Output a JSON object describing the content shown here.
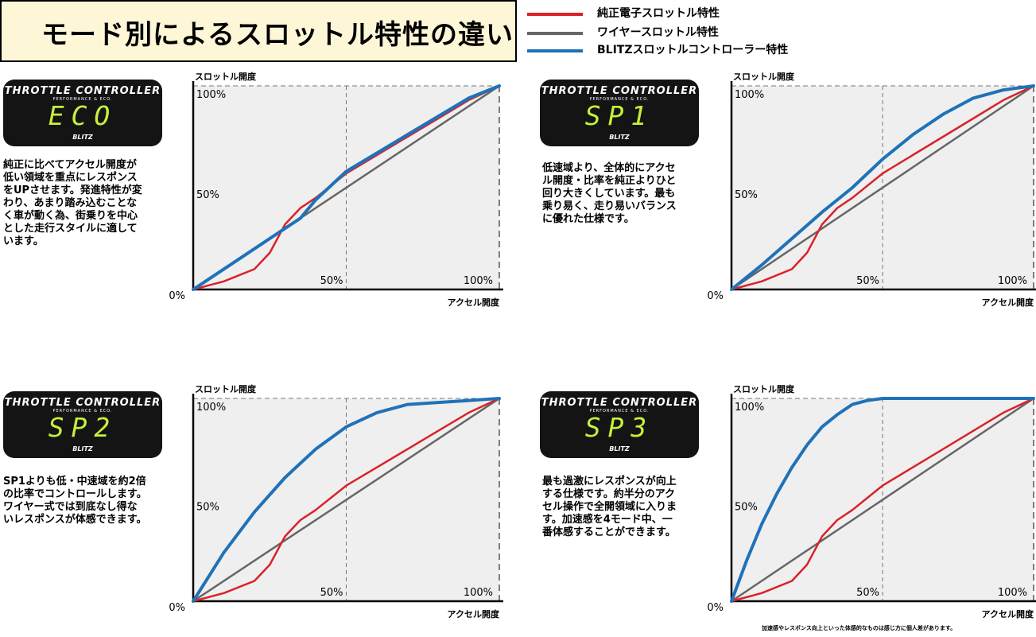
{
  "header": {
    "title": "モード別によるスロットル特性の違い"
  },
  "legend": [
    {
      "label": "純正電子スロットル特性",
      "color": "#d9222a"
    },
    {
      "label": "ワイヤースロットル特性",
      "color": "#666666"
    },
    {
      "label": "BLITZスロットルコントローラー特性",
      "color": "#1f72b8"
    }
  ],
  "device": {
    "brand": "THROTTLE CONTROLLER",
    "sub": "PERFORMANCE & ECO.",
    "logo": "BLITZ"
  },
  "panels": [
    {
      "mode": "ECO",
      "description": "純正に比べてアクセル開度が\n低い領域を重点にレスポンス\nをUPさせます。発進特性が変\nわり、あまり踏み込むことな\nく車が動く為、街乗りを中心\nとした走行スタイルに適して\nいます。"
    },
    {
      "mode": "SP1",
      "description": "低速域より、全体的にアクセ\nル開度・比率を純正よりひと\n回り大きくしています。最も\n乗り易く、走り易いバランス\nに優れた仕様です。"
    },
    {
      "mode": "SP2",
      "description": "SP1よりも低・中速域を約2倍\nの比率でコントロールします。\nワイヤー式では到底なし得な\nいレスポンスが体感できます。"
    },
    {
      "mode": "SP3",
      "description": "最も過激にレスポンスが向上\nする仕様です。約半分のアク\nセル操作で全開領域に入りま\nす。加速感を4モード中、一\n番体感することができます。"
    }
  ],
  "footnote": "加速感やレスポンス向上といった体感的なものは感じ方に個人差があります。",
  "chart_data": [
    {
      "type": "line",
      "mode": "ECO",
      "ylabel": "スロットル開度",
      "xlabel": "アクセル開度",
      "xlim": [
        0,
        100
      ],
      "ylim": [
        0,
        100
      ],
      "xticks": [
        "0%",
        "50%",
        "100%"
      ],
      "yticks": [
        "50%",
        "100%"
      ],
      "series": [
        {
          "name": "純正電子スロットル特性",
          "color": "#d9222a",
          "x": [
            0,
            10,
            20,
            25,
            30,
            35,
            40,
            50,
            60,
            70,
            80,
            90,
            100
          ],
          "y": [
            0,
            4,
            10,
            18,
            32,
            40,
            45,
            57,
            66,
            75,
            84,
            93,
            100
          ]
        },
        {
          "name": "ワイヤースロットル特性",
          "color": "#666666",
          "x": [
            0,
            100
          ],
          "y": [
            0,
            100
          ]
        },
        {
          "name": "BLITZスロットルコントローラー特性",
          "color": "#1f72b8",
          "x": [
            0,
            10,
            20,
            30,
            35,
            40,
            50,
            60,
            70,
            80,
            90,
            100
          ],
          "y": [
            0,
            10,
            20,
            30,
            35,
            44,
            58,
            67,
            76,
            85,
            94,
            100
          ]
        }
      ]
    },
    {
      "type": "line",
      "mode": "SP1",
      "ylabel": "スロットル開度",
      "xlabel": "アクセル開度",
      "xlim": [
        0,
        100
      ],
      "ylim": [
        0,
        100
      ],
      "xticks": [
        "0%",
        "50%",
        "100%"
      ],
      "yticks": [
        "50%",
        "100%"
      ],
      "series": [
        {
          "name": "純正電子スロットル特性",
          "color": "#d9222a",
          "x": [
            0,
            10,
            20,
            25,
            30,
            35,
            40,
            50,
            60,
            70,
            80,
            90,
            100
          ],
          "y": [
            0,
            4,
            10,
            18,
            32,
            40,
            45,
            57,
            66,
            75,
            84,
            93,
            100
          ]
        },
        {
          "name": "ワイヤースロットル特性",
          "color": "#666666",
          "x": [
            0,
            100
          ],
          "y": [
            0,
            100
          ]
        },
        {
          "name": "BLITZスロットルコントローラー特性",
          "color": "#1f72b8",
          "x": [
            0,
            10,
            20,
            30,
            40,
            50,
            60,
            70,
            80,
            90,
            100
          ],
          "y": [
            0,
            12,
            25,
            38,
            50,
            64,
            76,
            86,
            94,
            98,
            100
          ]
        }
      ]
    },
    {
      "type": "line",
      "mode": "SP2",
      "ylabel": "スロットル開度",
      "xlabel": "アクセル開度",
      "xlim": [
        0,
        100
      ],
      "ylim": [
        0,
        100
      ],
      "xticks": [
        "0%",
        "50%",
        "100%"
      ],
      "yticks": [
        "50%",
        "100%"
      ],
      "series": [
        {
          "name": "純正電子スロットル特性",
          "color": "#d9222a",
          "x": [
            0,
            10,
            20,
            25,
            30,
            35,
            40,
            50,
            60,
            70,
            80,
            90,
            100
          ],
          "y": [
            0,
            4,
            10,
            18,
            32,
            40,
            45,
            57,
            66,
            75,
            84,
            93,
            100
          ]
        },
        {
          "name": "ワイヤースロットル特性",
          "color": "#666666",
          "x": [
            0,
            100
          ],
          "y": [
            0,
            100
          ]
        },
        {
          "name": "BLITZスロットルコントローラー特性",
          "color": "#1f72b8",
          "x": [
            0,
            10,
            20,
            30,
            40,
            50,
            60,
            70,
            80,
            90,
            100
          ],
          "y": [
            0,
            24,
            44,
            61,
            75,
            86,
            93,
            97,
            98,
            99,
            100
          ]
        }
      ]
    },
    {
      "type": "line",
      "mode": "SP3",
      "ylabel": "スロットル開度",
      "xlabel": "アクセル開度",
      "xlim": [
        0,
        100
      ],
      "ylim": [
        0,
        100
      ],
      "xticks": [
        "0%",
        "50%",
        "100%"
      ],
      "yticks": [
        "50%",
        "100%"
      ],
      "series": [
        {
          "name": "純正電子スロットル特性",
          "color": "#d9222a",
          "x": [
            0,
            10,
            20,
            25,
            30,
            35,
            40,
            50,
            60,
            70,
            80,
            90,
            100
          ],
          "y": [
            0,
            4,
            10,
            18,
            32,
            40,
            45,
            57,
            66,
            75,
            84,
            93,
            100
          ]
        },
        {
          "name": "ワイヤースロットル特性",
          "color": "#666666",
          "x": [
            0,
            100
          ],
          "y": [
            0,
            100
          ]
        },
        {
          "name": "BLITZスロットルコントローラー特性",
          "color": "#1f72b8",
          "x": [
            0,
            5,
            10,
            15,
            20,
            25,
            30,
            35,
            40,
            45,
            50,
            60,
            70,
            80,
            90,
            100
          ],
          "y": [
            0,
            20,
            38,
            53,
            66,
            77,
            86,
            92,
            97,
            99,
            100,
            100,
            100,
            100,
            100,
            100
          ]
        }
      ]
    }
  ]
}
